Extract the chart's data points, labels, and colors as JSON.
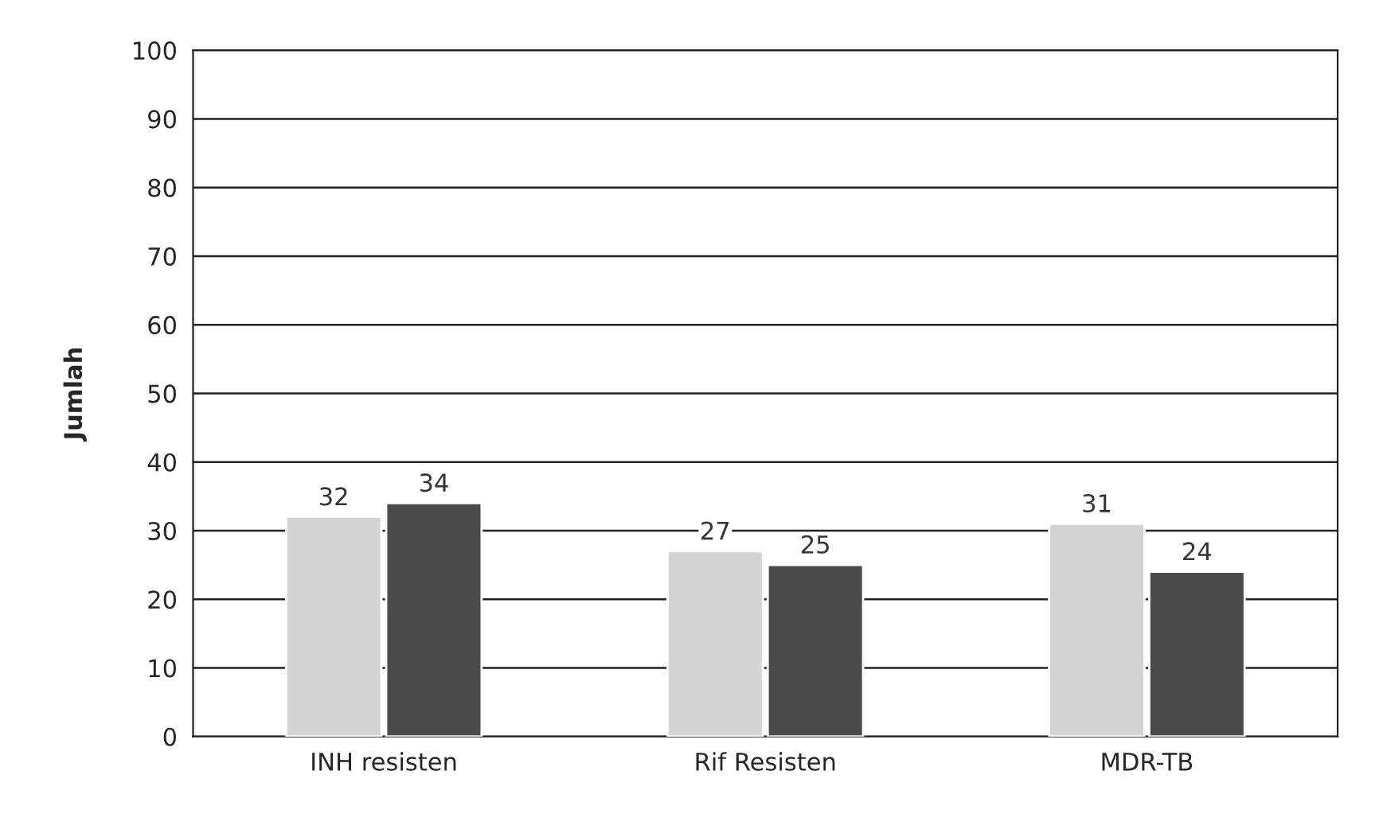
{
  "chart_data": {
    "type": "bar",
    "ylabel": "Jumlah",
    "categories": [
      "INH resisten",
      "Rif Resisten",
      "MDR-TB"
    ],
    "series": [
      {
        "color": "#d4d4d4",
        "values": [
          32,
          27,
          31
        ]
      },
      {
        "color": "#4a4a4a",
        "values": [
          34,
          25,
          24
        ]
      }
    ],
    "ylim": [
      0,
      100
    ],
    "yticks": [
      0,
      10,
      20,
      30,
      40,
      50,
      60,
      70,
      80,
      90,
      100
    ],
    "grid": "y",
    "data_labels": true
  }
}
